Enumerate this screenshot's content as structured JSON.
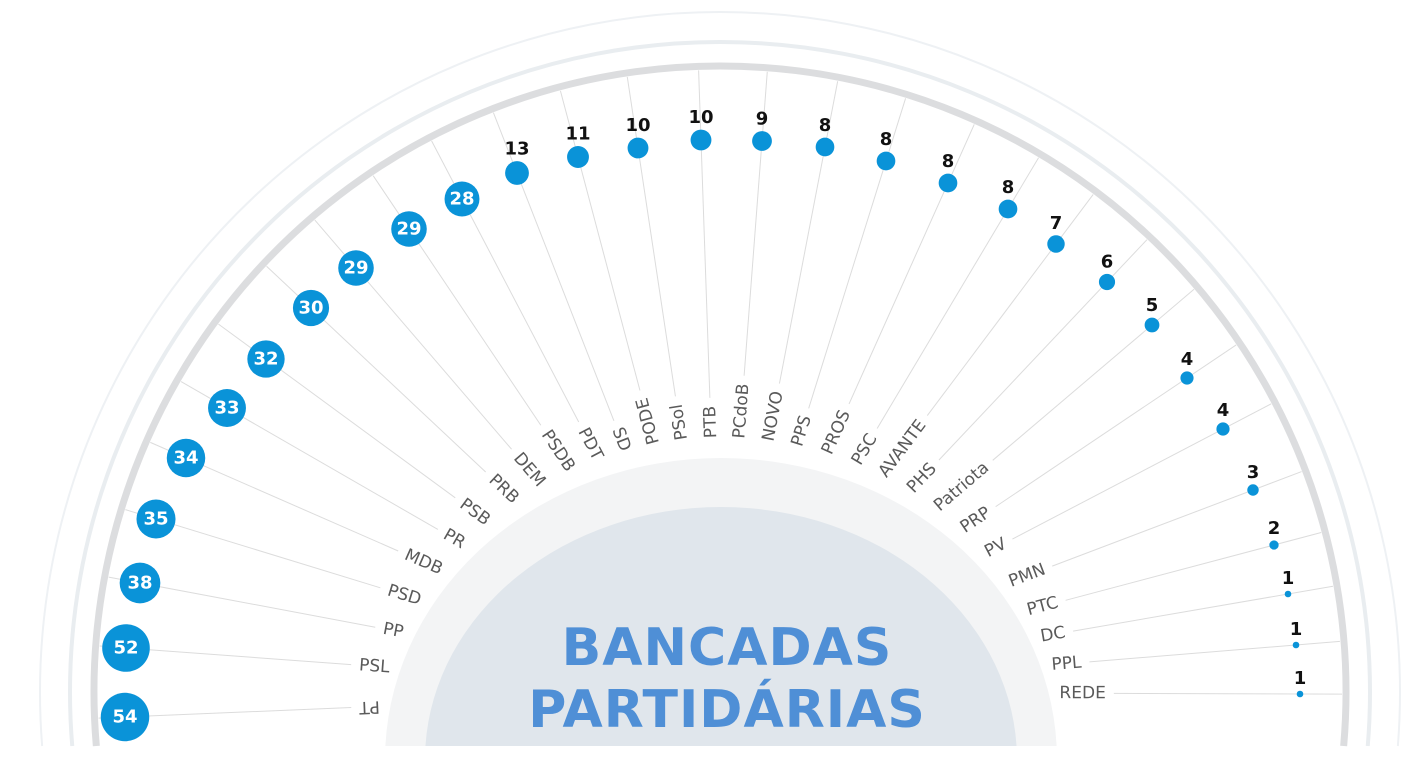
{
  "chart_data": {
    "type": "radial-bubble",
    "title": "BANCADAS PARTIDÁRIAS",
    "title_lines": [
      "BANCADAS",
      "PARTIDÁRIAS"
    ],
    "categories": [
      "PT",
      "PSL",
      "PP",
      "PSD",
      "MDB",
      "PR",
      "PSB",
      "PRB",
      "DEM",
      "PSDB",
      "PDT",
      "SD",
      "PODE",
      "PSol",
      "PTB",
      "PCdoB",
      "NOVO",
      "PPS",
      "PROS",
      "PSC",
      "AVANTE",
      "PHS",
      "Patriota",
      "PRP",
      "PV",
      "PMN",
      "PTC",
      "DC",
      "PPL",
      "REDE"
    ],
    "values": [
      54,
      52,
      38,
      35,
      34,
      33,
      32,
      30,
      29,
      29,
      28,
      13,
      11,
      10,
      10,
      9,
      8,
      8,
      8,
      8,
      7,
      6,
      5,
      4,
      4,
      3,
      2,
      1,
      1,
      1
    ]
  },
  "colors": {
    "bubble": "#0a93d8",
    "title": "#4f8fd6",
    "label": "#5a5a5a",
    "inner_outer_fill": "#f3f4f5",
    "inner_fill": "#e0e6ec",
    "arc_dark": "#dcdddf",
    "arc_light": "#e9edf0"
  }
}
